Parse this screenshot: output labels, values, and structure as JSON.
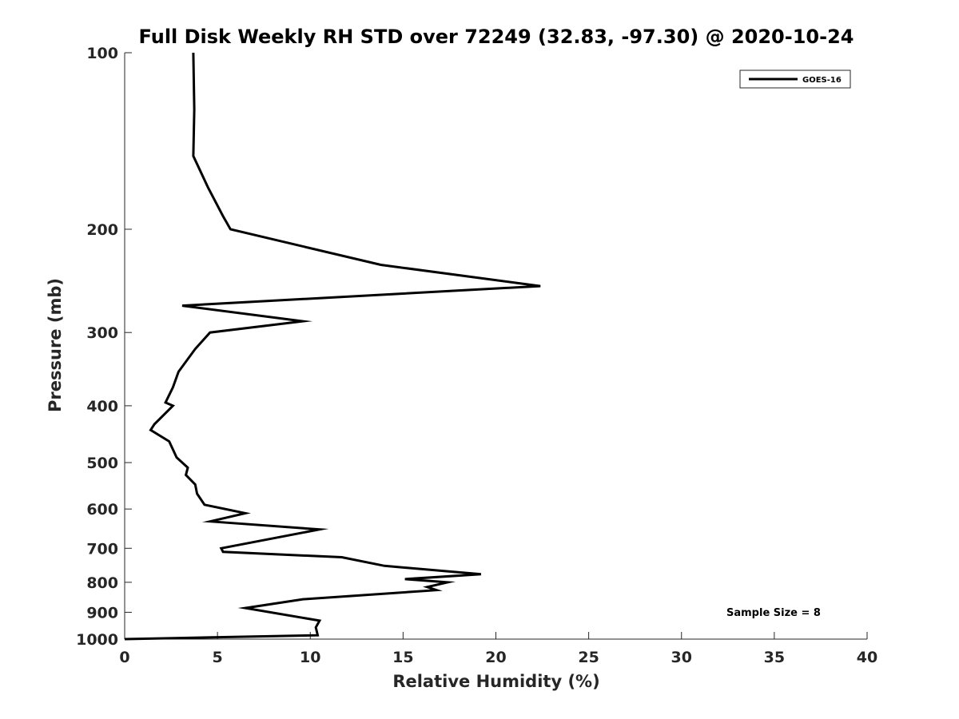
{
  "chart_data": {
    "type": "line",
    "title": "Full Disk Weekly RH STD over 72249 (32.83, -97.30) @ 2020-10-24",
    "xlabel": "Relative Humidity (%)",
    "ylabel": "Pressure (mb)",
    "xlim": [
      0,
      40
    ],
    "ylim": [
      100,
      1000
    ],
    "y_scale": "log",
    "y_reversed": true,
    "x_ticks": [
      0,
      5,
      10,
      15,
      20,
      25,
      30,
      35,
      40
    ],
    "y_ticks": [
      100,
      200,
      300,
      400,
      500,
      600,
      700,
      800,
      900,
      1000
    ],
    "grid": false,
    "legend_position": "top-right",
    "annotation": "Sample Size = 8",
    "series": [
      {
        "name": "GOES-16",
        "color": "#000000",
        "points": [
          [
            3.7,
            100
          ],
          [
            3.75,
            125
          ],
          [
            3.7,
            150
          ],
          [
            4.5,
            170
          ],
          [
            5.3,
            190
          ],
          [
            5.7,
            200
          ],
          [
            13.8,
            230
          ],
          [
            22.4,
            250
          ],
          [
            3.1,
            270
          ],
          [
            9.6,
            287
          ],
          [
            4.6,
            300
          ],
          [
            3.8,
            320
          ],
          [
            2.9,
            350
          ],
          [
            2.6,
            372
          ],
          [
            2.2,
            395
          ],
          [
            2.6,
            400
          ],
          [
            1.6,
            430
          ],
          [
            1.4,
            440
          ],
          [
            2.4,
            460
          ],
          [
            2.8,
            490
          ],
          [
            3.4,
            510
          ],
          [
            3.3,
            525
          ],
          [
            3.8,
            545
          ],
          [
            3.9,
            565
          ],
          [
            4.3,
            590
          ],
          [
            6.5,
            610
          ],
          [
            4.6,
            630
          ],
          [
            10.5,
            650
          ],
          [
            5.2,
            700
          ],
          [
            5.3,
            710
          ],
          [
            11.7,
            725
          ],
          [
            14.0,
            750
          ],
          [
            19.2,
            775
          ],
          [
            15.1,
            790
          ],
          [
            17.4,
            800
          ],
          [
            16.3,
            815
          ],
          [
            16.8,
            825
          ],
          [
            9.6,
            855
          ],
          [
            6.5,
            885
          ],
          [
            10.5,
            930
          ],
          [
            10.3,
            955
          ],
          [
            10.4,
            985
          ],
          [
            0.0,
            1000
          ]
        ]
      }
    ]
  }
}
